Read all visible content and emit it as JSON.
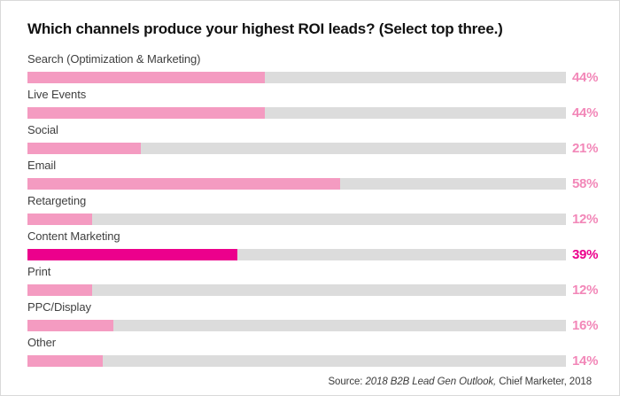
{
  "title": "Which channels produce your highest ROI leads? (Select top three.)",
  "source": {
    "prefix": "Source: ",
    "italic": "2018 B2B Lead Gen Outlook,",
    "suffix": " Chief Marketer, 2018"
  },
  "colors": {
    "bar_fill": "#F49BC1",
    "bar_fill_highlight": "#EC008C",
    "bar_track": "#DCDCDC",
    "value_label": "#F287B8",
    "value_label_highlight": "#EC008C",
    "category_label": "#3F3F3F",
    "title_text": "#111111"
  },
  "chart_data": {
    "type": "bar",
    "orientation": "horizontal",
    "title": "Which channels produce your highest ROI leads? (Select top three.)",
    "categories": [
      "Search (Optimization & Marketing)",
      "Live Events",
      "Social",
      "Email",
      "Retargeting",
      "Content Marketing",
      "Print",
      "PPC/Display",
      "Other"
    ],
    "values": [
      44,
      44,
      21,
      58,
      12,
      39,
      12,
      16,
      14
    ],
    "value_suffix": "%",
    "xlim": [
      0,
      100
    ],
    "highlighted_category": "Content Marketing",
    "grid": false,
    "legend": "none"
  }
}
